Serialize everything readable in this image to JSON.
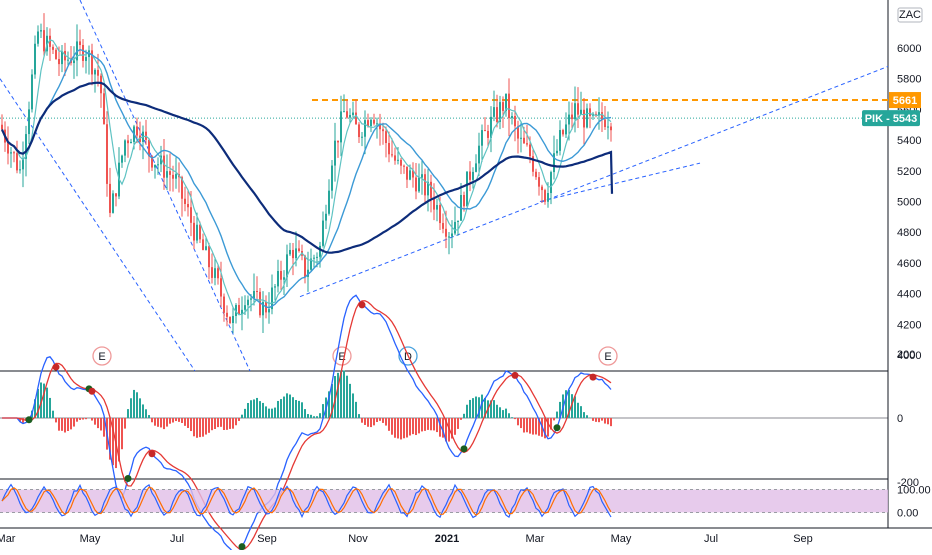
{
  "chart_data": [
    {
      "type": "candlestick",
      "symbol": "PIK",
      "currency": "ZAC",
      "price_axis_ticks": [
        4000,
        4200,
        4400,
        4600,
        4800,
        5000,
        5200,
        5400,
        5600,
        5800,
        6000
      ],
      "ylim": [
        3900,
        6200
      ],
      "time_axis_ticks": [
        "Mar",
        "May",
        "Jul",
        "Sep",
        "Nov",
        "2021",
        "Mar",
        "May",
        "Jul",
        "Sep"
      ],
      "last_price_label": "PIK - 5543",
      "last_price": 5543,
      "resistance_label": "5661",
      "resistance": 5661,
      "event_markers": [
        {
          "label": "E",
          "date": "May"
        },
        {
          "label": "E",
          "date": "Oct"
        },
        {
          "label": "D",
          "date": "Nov"
        },
        {
          "label": "E",
          "date": "Apr 2021"
        }
      ],
      "moving_averages": [
        "short",
        "medium",
        "long"
      ],
      "grid": false,
      "colors": {
        "up": "#26a69a",
        "down": "#ef5350",
        "resistance": "#ff9800",
        "trendline": "#2962ff",
        "ma_long": "#0d2c7a",
        "ma_medium": "#3c9ad6",
        "ma_short": "#5fc3c3",
        "last_price_tag": "#26a69a"
      }
    },
    {
      "type": "macd",
      "axis_ticks": [
        200,
        0,
        -200
      ],
      "ylim": [
        -320,
        280
      ]
    },
    {
      "type": "stochastic",
      "axis_ticks": [
        "100.00",
        "0.00"
      ],
      "band_upper": 80,
      "band_lower": 20,
      "ylim": [
        0,
        100
      ]
    }
  ]
}
